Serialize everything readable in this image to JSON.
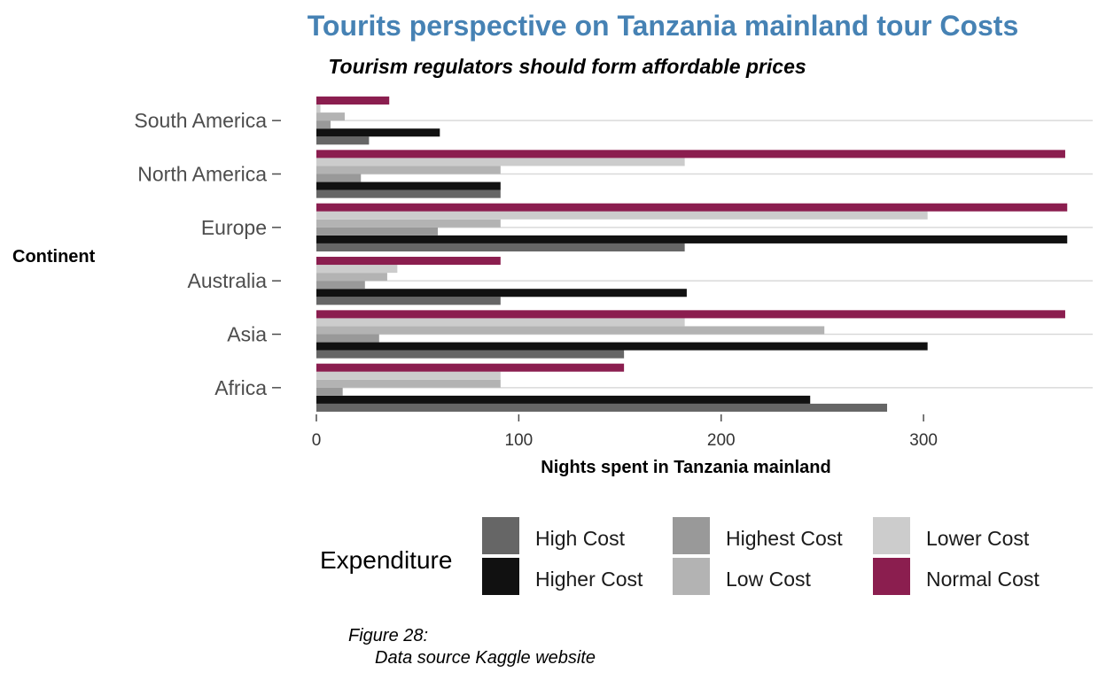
{
  "chart_data": {
    "type": "bar",
    "orientation": "horizontal",
    "title": "Tourits perspective on Tanzania mainland tour Costs",
    "subtitle": "Tourism regulators should form affordable prices",
    "xlabel": "Nights spent in Tanzania mainland",
    "ylabel": "Continent",
    "xlim": [
      0,
      375
    ],
    "x_ticks": [
      "0",
      "100",
      "200",
      "300"
    ],
    "x_tick_values": [
      0,
      100,
      200,
      300
    ],
    "grid": "horizontal",
    "legend_title": "Expenditure",
    "legend_position": "bottom",
    "caption_line1": "Figure 28:",
    "caption_line2": "Data source Kaggle website",
    "categories": [
      "Africa",
      "Asia",
      "Australia",
      "Europe",
      "North America",
      "South America"
    ],
    "series": [
      {
        "name": "High Cost",
        "color": "#666666",
        "values": [
          282,
          152,
          91,
          182,
          91,
          26
        ]
      },
      {
        "name": "Higher Cost",
        "color": "#111111",
        "values": [
          244,
          302,
          183,
          371,
          91,
          61
        ]
      },
      {
        "name": "Highest Cost",
        "color": "#999999",
        "values": [
          13,
          31,
          24,
          60,
          22,
          7
        ]
      },
      {
        "name": "Low Cost",
        "color": "#b3b3b3",
        "values": [
          91,
          251,
          35,
          91,
          91,
          14
        ]
      },
      {
        "name": "Lower Cost",
        "color": "#cccccc",
        "values": [
          91,
          182,
          40,
          302,
          182,
          2
        ]
      },
      {
        "name": "Normal Cost",
        "color": "#8b1e4f",
        "values": [
          152,
          370,
          91,
          371,
          370,
          36
        ]
      }
    ],
    "colors": {
      "title": "#4682b4",
      "grid": "#d9d9d9"
    }
  }
}
